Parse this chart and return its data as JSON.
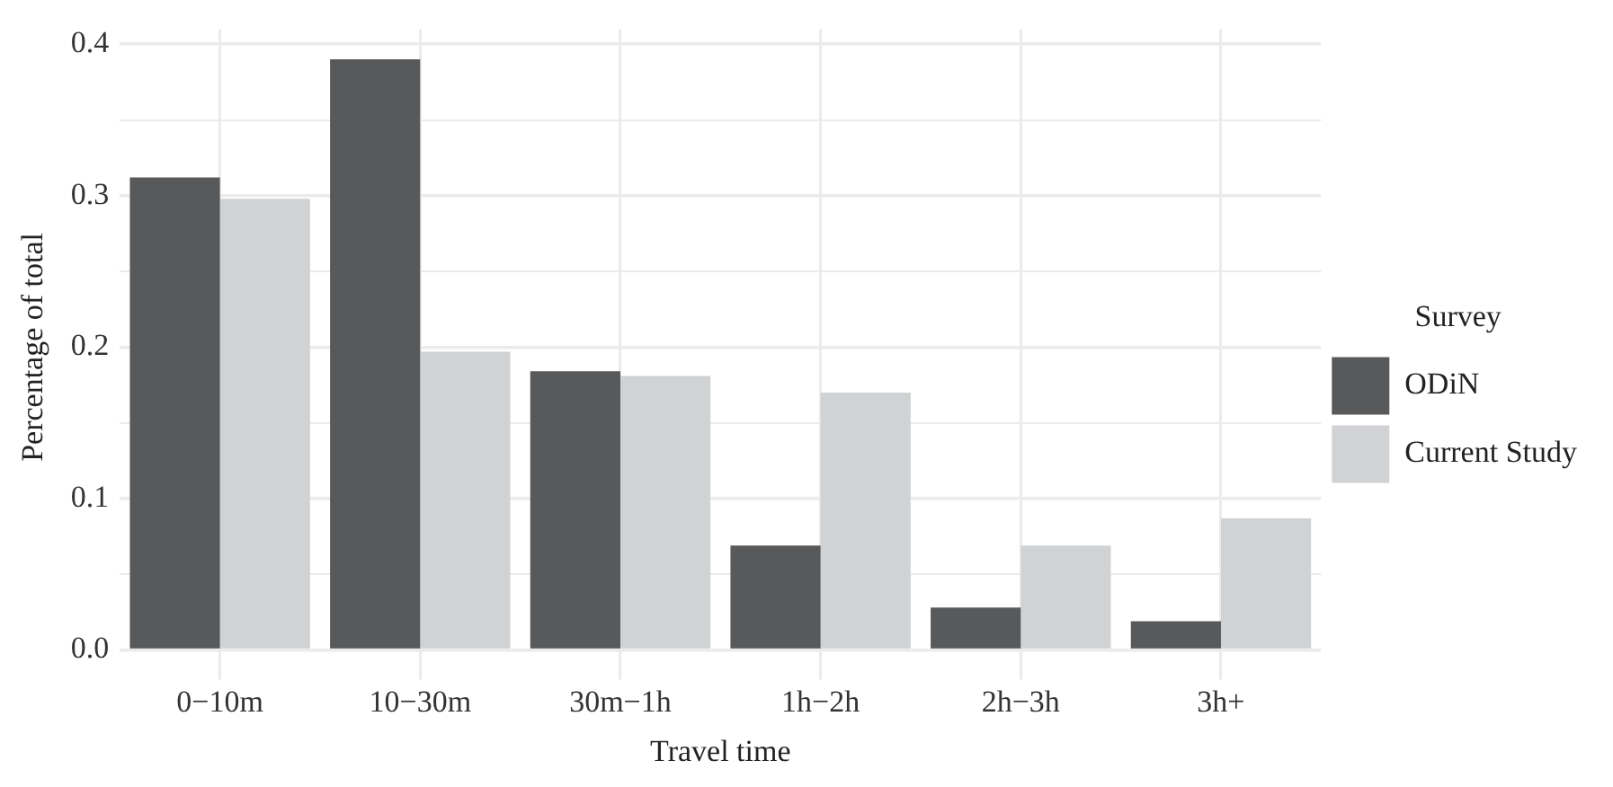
{
  "chart_data": {
    "type": "bar",
    "xlabel": "Travel time",
    "ylabel": "Percentage of total",
    "legend_title": "Survey",
    "categories": [
      "0−10m",
      "10−30m",
      "30m−1h",
      "1h−2h",
      "2h−3h",
      "3h+"
    ],
    "series": [
      {
        "name": "ODiN",
        "color": "#58595b",
        "values": [
          0.312,
          0.39,
          0.184,
          0.069,
          0.028,
          0.019
        ]
      },
      {
        "name": "Current Study",
        "color": "#d1d2d4",
        "values": [
          0.298,
          0.197,
          0.181,
          0.17,
          0.069,
          0.087
        ]
      }
    ],
    "ylim": [
      -0.01,
      0.41
    ],
    "yticks": [
      {
        "value": 0,
        "label": "0.0"
      },
      {
        "value": 0.05,
        "label": null
      },
      0.1,
      {
        "value": 0.15,
        "label": null
      },
      0.2,
      {
        "value": 0.25,
        "label": null
      },
      0.3,
      {
        "value": 0.35,
        "label": null
      },
      0.4
    ],
    "grid": true,
    "legend": "right"
  }
}
